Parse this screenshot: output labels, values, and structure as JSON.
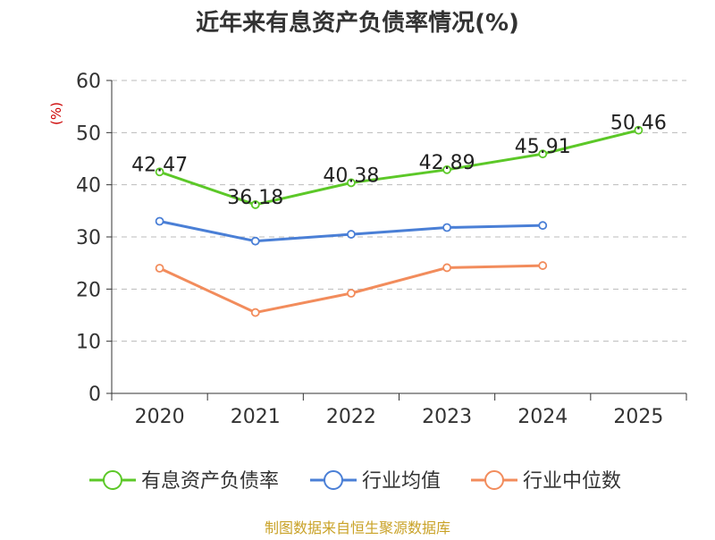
{
  "chart_data": {
    "type": "line",
    "title": "近年来有息资产负债率情况(%)",
    "ylabel": "(%)",
    "xlabel": "",
    "categories": [
      "2020",
      "2021",
      "2022",
      "2023",
      "2024",
      "2025"
    ],
    "ylim": [
      0,
      60
    ],
    "yticks": [
      0,
      10,
      20,
      30,
      40,
      50,
      60
    ],
    "grid": true,
    "legend_position": "bottom",
    "series": [
      {
        "name": "有息资产负债率",
        "color": "#5cc828",
        "values": [
          42.47,
          36.18,
          40.38,
          42.89,
          45.91,
          50.46
        ],
        "show_labels": true
      },
      {
        "name": "行业均值",
        "color": "#4a7fd6",
        "values": [
          33.0,
          29.2,
          30.5,
          31.8,
          32.2,
          null
        ],
        "show_labels": false
      },
      {
        "name": "行业中位数",
        "color": "#f28c5c",
        "values": [
          24.0,
          15.5,
          19.2,
          24.1,
          24.5,
          null
        ],
        "show_labels": false
      }
    ]
  },
  "source": "制图数据来自恒生聚源数据库",
  "colors": {
    "ylabel": "#cc0000",
    "axis": "#333333",
    "grid": "#bbbbbb",
    "source": "#c9a227"
  }
}
